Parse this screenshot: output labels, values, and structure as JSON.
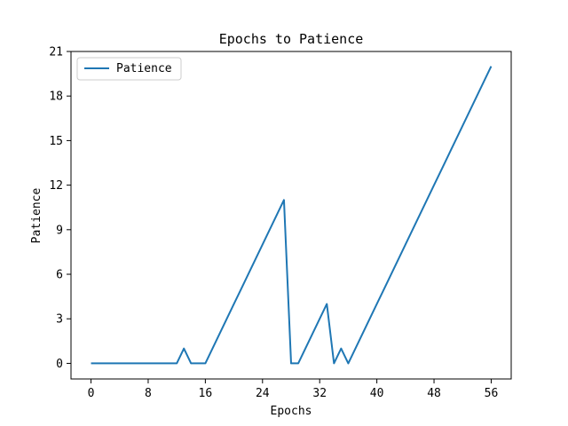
{
  "chart_data": {
    "type": "line",
    "title": "Epochs to Patience",
    "xlabel": "Epochs",
    "ylabel": "Patience",
    "xlim": [
      -2.8,
      58.8
    ],
    "ylim": [
      -1.05,
      21
    ],
    "xticks": [
      0,
      8,
      16,
      24,
      32,
      40,
      48,
      56
    ],
    "yticks": [
      0,
      3,
      6,
      9,
      12,
      15,
      18,
      21
    ],
    "grid": false,
    "legend": "top-left",
    "series": [
      {
        "name": "Patience",
        "color": "#1f77b4",
        "x": [
          0,
          1,
          2,
          3,
          4,
          5,
          6,
          7,
          8,
          9,
          10,
          11,
          12,
          13,
          14,
          15,
          16,
          17,
          18,
          19,
          20,
          21,
          22,
          23,
          24,
          25,
          26,
          27,
          28,
          29,
          30,
          31,
          32,
          33,
          34,
          35,
          36,
          37,
          38,
          39,
          40,
          41,
          42,
          43,
          44,
          45,
          46,
          47,
          48,
          49,
          50,
          51,
          52,
          53,
          54,
          55,
          56
        ],
        "y": [
          0,
          0,
          0,
          0,
          0,
          0,
          0,
          0,
          0,
          0,
          0,
          0,
          0,
          1,
          0,
          0,
          0,
          1,
          2,
          3,
          4,
          5,
          6,
          7,
          8,
          9,
          10,
          11,
          0,
          0,
          1,
          2,
          3,
          4,
          0,
          1,
          0,
          1,
          2,
          3,
          4,
          5,
          6,
          7,
          8,
          9,
          10,
          11,
          12,
          13,
          14,
          15,
          16,
          17,
          18,
          19,
          20
        ]
      }
    ]
  }
}
